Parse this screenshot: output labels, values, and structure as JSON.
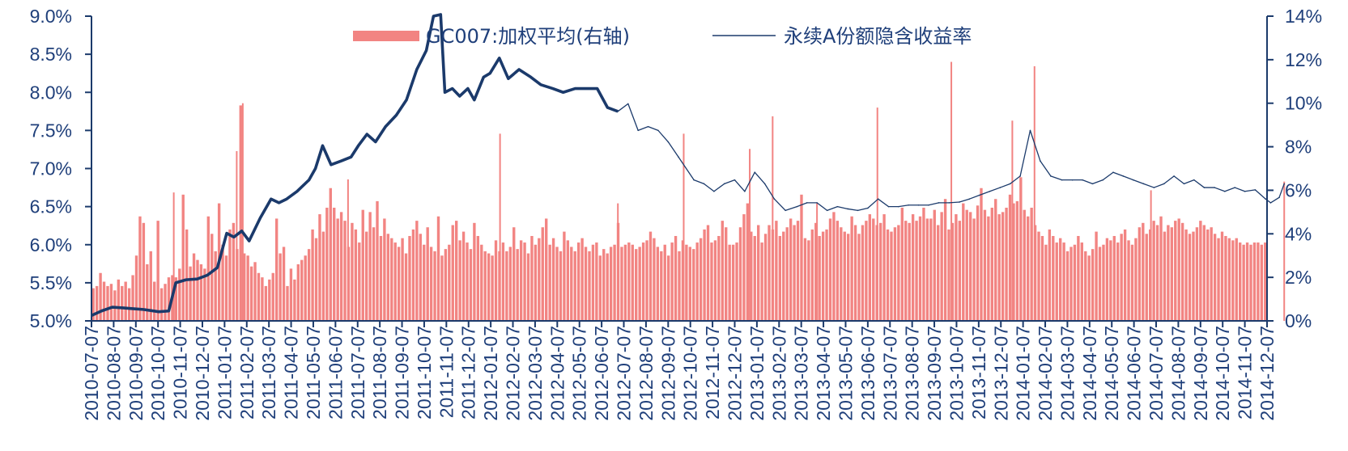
{
  "chart_data": {
    "type": "bar+line",
    "title": "",
    "xlabel": "",
    "y_left": {
      "label": "",
      "range": [
        5.0,
        9.0
      ],
      "ticks": [
        "5.0%",
        "5.5%",
        "6.0%",
        "6.5%",
        "7.0%",
        "7.5%",
        "8.0%",
        "8.5%",
        "9.0%"
      ]
    },
    "y_right": {
      "label": "",
      "range": [
        0,
        14
      ],
      "ticks": [
        "0%",
        "2%",
        "4%",
        "6%",
        "8%",
        "10%",
        "12%",
        "14%"
      ]
    },
    "x_ticks": [
      "2010-07-07",
      "2010-08-07",
      "2010-09-07",
      "2010-10-07",
      "2010-11-07",
      "2010-12-07",
      "2011-01-07",
      "2011-02-07",
      "2011-03-07",
      "2011-04-07",
      "2011-05-07",
      "2011-06-07",
      "2011-07-07",
      "2011-08-07",
      "2011-09-07",
      "2011-10-07",
      "2011-11-07",
      "2011-12-07",
      "2012-01-07",
      "2012-02-07",
      "2012-03-07",
      "2012-04-07",
      "2012-05-07",
      "2012-06-07",
      "2012-07-07",
      "2012-08-07",
      "2012-09-07",
      "2012-10-07",
      "2012-11-07",
      "2012-12-07",
      "2013-01-07",
      "2013-02-07",
      "2013-03-07",
      "2013-04-07",
      "2013-05-07",
      "2013-06-07",
      "2013-07-07",
      "2013-08-07",
      "2013-09-07",
      "2013-10-07",
      "2013-11-07",
      "2013-12-07",
      "2014-01-07",
      "2014-02-07",
      "2014-03-07",
      "2014-04-07",
      "2014-05-07",
      "2014-06-07",
      "2014-07-07",
      "2014-08-07",
      "2014-09-07",
      "2014-10-07",
      "2014-11-07",
      "2014-12-07"
    ],
    "legend": {
      "placement": "top-center"
    },
    "series": [
      {
        "name": "GC007:加权平均(右轴)",
        "kind": "bar",
        "axis": "right",
        "color": "#f28482",
        "x_start": 0,
        "x_end": 53,
        "values": [
          1.5,
          1.6,
          2.2,
          1.8,
          1.6,
          1.7,
          1.4,
          1.9,
          1.6,
          1.8,
          1.5,
          2.1,
          3.0,
          4.8,
          4.5,
          2.6,
          3.2,
          1.8,
          4.6,
          1.5,
          1.7,
          2.0,
          2.1,
          2.0,
          2.4,
          5.8,
          4.2,
          2.5,
          3.1,
          2.8,
          2.6,
          2.4,
          4.8,
          4.0,
          3.2,
          5.4,
          3.5,
          3.0,
          4.2,
          4.5,
          3.3,
          9.9,
          3.1,
          3.0,
          2.5,
          2.7,
          2.2,
          2.0,
          1.6,
          1.9,
          2.2,
          4.7,
          3.1,
          3.4,
          1.6,
          2.4,
          1.9,
          2.6,
          2.8,
          3.0,
          3.3,
          4.2,
          3.8,
          4.9,
          4.1,
          5.2,
          6.1,
          5.2,
          4.7,
          5.0,
          4.6,
          3.4,
          4.5,
          4.2,
          3.6,
          5.1,
          4.1,
          5.0,
          4.3,
          5.5,
          3.9,
          4.7,
          4.0,
          3.8,
          3.6,
          3.4,
          3.8,
          3.1,
          3.9,
          4.2,
          4.6,
          4.0,
          3.5,
          4.3,
          3.4,
          3.2,
          4.8,
          3.0,
          3.3,
          3.5,
          4.4,
          4.6,
          3.7,
          4.1,
          3.6,
          3.3,
          4.5,
          3.9,
          3.5,
          3.2,
          3.1,
          3.0,
          3.7,
          3.2,
          3.6,
          3.2,
          3.4,
          4.3,
          3.3,
          3.7,
          3.6,
          3.1,
          3.9,
          3.5,
          3.8,
          4.3,
          4.7,
          3.5,
          3.8,
          3.4,
          3.2,
          4.1,
          3.7,
          3.4,
          3.2,
          3.6,
          3.8,
          3.4,
          3.2,
          3.5,
          3.6,
          3.0,
          3.3,
          3.1,
          3.4,
          3.5,
          4.5,
          3.4,
          3.5,
          3.6,
          3.5,
          3.3,
          3.4,
          3.6,
          3.7,
          4.1,
          3.8,
          3.4,
          3.2,
          3.5,
          3.0,
          3.6,
          3.9,
          3.2,
          3.7,
          3.5,
          3.4,
          3.3,
          3.6,
          3.8,
          4.2,
          4.4,
          3.6,
          3.7,
          3.9,
          4.6,
          4.3,
          3.5,
          3.5,
          3.6,
          4.3,
          4.9,
          5.4,
          4.1,
          3.9,
          4.4,
          3.6,
          4.0,
          4.4,
          4.2,
          4.6,
          3.9,
          4.1,
          4.3,
          4.7,
          4.4,
          4.6,
          5.8,
          3.8,
          3.7,
          4.2,
          4.5,
          3.9,
          4.1,
          4.2,
          4.7,
          5.0,
          4.6,
          4.3,
          4.1,
          4.0,
          4.8,
          4.4,
          4.0,
          4.4,
          4.6,
          4.9,
          4.7,
          4.4,
          4.5,
          4.9,
          4.2,
          4.1,
          4.3,
          4.4,
          5.2,
          4.6,
          4.5,
          4.9,
          4.6,
          4.8,
          5.2,
          4.7,
          4.7,
          5.1,
          4.4,
          5.0,
          5.6,
          4.2,
          4.5,
          4.9,
          4.6,
          5.4,
          5.1,
          5.0,
          4.7,
          5.3,
          6.1,
          5.1,
          4.8,
          5.2,
          5.6,
          4.9,
          5.0,
          5.2,
          5.8,
          5.4,
          5.5,
          6.6,
          5.1,
          4.8,
          5.2,
          4.4,
          4.1,
          3.9,
          3.5,
          4.2,
          3.9,
          3.6,
          3.8,
          3.6,
          3.2,
          3.4,
          3.5,
          3.9,
          3.6,
          3.2,
          3.0,
          3.3,
          4.1,
          3.4,
          3.5,
          3.8,
          3.7,
          3.9,
          3.6,
          4.0,
          4.2,
          3.7,
          3.5,
          3.8,
          4.3,
          4.5,
          4.0,
          4.2,
          4.6,
          4.4,
          4.8,
          4.1,
          4.4,
          4.3,
          4.6,
          4.7,
          4.5,
          4.2,
          4.0,
          4.1,
          4.3,
          4.6,
          4.4,
          4.2,
          4.3,
          4.0,
          3.8,
          4.1,
          3.9,
          3.8,
          3.7,
          3.8,
          3.6,
          3.5,
          3.6,
          3.5,
          3.6,
          3.6,
          3.5,
          3.6
        ],
        "spikes": [
          {
            "date": "2010-10-29",
            "value": 5.9
          },
          {
            "date": "2011-01-24",
            "value": 7.8
          },
          {
            "date": "2011-02-02",
            "value": 10.0
          },
          {
            "date": "2011-06-24",
            "value": 6.5
          },
          {
            "date": "2012-01-20",
            "value": 8.6
          },
          {
            "date": "2012-06-29",
            "value": 5.4
          },
          {
            "date": "2012-09-28",
            "value": 8.6
          },
          {
            "date": "2012-12-28",
            "value": 7.9
          },
          {
            "date": "2013-01-29",
            "value": 9.4
          },
          {
            "date": "2013-03-29",
            "value": 5.4
          },
          {
            "date": "2013-06-20",
            "value": 9.8
          },
          {
            "date": "2013-09-30",
            "value": 11.9
          },
          {
            "date": "2013-12-23",
            "value": 9.2
          },
          {
            "date": "2014-01-23",
            "value": 11.7
          },
          {
            "date": "2014-06-30",
            "value": 6.0
          },
          {
            "date": "2014-12-31",
            "value": 6.4
          }
        ]
      },
      {
        "name": "永续A份额隐含收益率",
        "kind": "line",
        "axis": "left",
        "color": "#1b3a6b",
        "points": [
          [
            "2010-07-07",
            5.07
          ],
          [
            "2010-07-21",
            5.13
          ],
          [
            "2010-08-05",
            5.18
          ],
          [
            "2010-08-20",
            5.17
          ],
          [
            "2010-09-03",
            5.16
          ],
          [
            "2010-09-17",
            5.15
          ],
          [
            "2010-10-08",
            5.12
          ],
          [
            "2010-10-22",
            5.13
          ],
          [
            "2010-11-01",
            5.5
          ],
          [
            "2010-11-15",
            5.54
          ],
          [
            "2010-11-30",
            5.55
          ],
          [
            "2010-12-14",
            5.6
          ],
          [
            "2010-12-28",
            5.7
          ],
          [
            "2011-01-10",
            6.15
          ],
          [
            "2011-01-20",
            6.1
          ],
          [
            "2011-01-31",
            6.18
          ],
          [
            "2011-02-10",
            6.05
          ],
          [
            "2011-02-24",
            6.35
          ],
          [
            "2011-03-10",
            6.6
          ],
          [
            "2011-03-21",
            6.55
          ],
          [
            "2011-04-01",
            6.6
          ],
          [
            "2011-04-15",
            6.7
          ],
          [
            "2011-05-01",
            6.85
          ],
          [
            "2011-05-10",
            7.0
          ],
          [
            "2011-05-20",
            7.3
          ],
          [
            "2011-06-01",
            7.05
          ],
          [
            "2011-06-15",
            7.1
          ],
          [
            "2011-06-28",
            7.15
          ],
          [
            "2011-07-08",
            7.3
          ],
          [
            "2011-07-20",
            7.45
          ],
          [
            "2011-08-01",
            7.35
          ],
          [
            "2011-08-15",
            7.55
          ],
          [
            "2011-08-30",
            7.7
          ],
          [
            "2011-09-13",
            7.9
          ],
          [
            "2011-09-27",
            8.3
          ],
          [
            "2011-10-10",
            8.55
          ],
          [
            "2011-10-20",
            9.0
          ],
          [
            "2011-10-30",
            9.1
          ],
          [
            "2011-11-05",
            8.0
          ],
          [
            "2011-11-15",
            8.05
          ],
          [
            "2011-11-25",
            7.95
          ],
          [
            "2011-12-06",
            8.05
          ],
          [
            "2011-12-15",
            7.9
          ],
          [
            "2011-12-28",
            8.2
          ],
          [
            "2012-01-06",
            8.25
          ],
          [
            "2012-01-19",
            8.45
          ],
          [
            "2012-02-01",
            8.18
          ],
          [
            "2012-02-15",
            8.3
          ],
          [
            "2012-03-01",
            8.2
          ],
          [
            "2012-03-15",
            8.1
          ],
          [
            "2012-04-01",
            8.05
          ],
          [
            "2012-04-15",
            8.0
          ],
          [
            "2012-05-01",
            8.05
          ],
          [
            "2012-05-15",
            8.05
          ],
          [
            "2012-06-01",
            8.05
          ],
          [
            "2012-06-15",
            7.8
          ],
          [
            "2012-06-29",
            7.75
          ],
          [
            "2012-07-13",
            7.85
          ],
          [
            "2012-07-27",
            7.5
          ],
          [
            "2012-08-10",
            7.55
          ],
          [
            "2012-08-24",
            7.5
          ],
          [
            "2012-09-07",
            7.35
          ],
          [
            "2012-09-21",
            7.15
          ],
          [
            "2012-10-12",
            6.85
          ],
          [
            "2012-10-26",
            6.8
          ],
          [
            "2012-11-09",
            6.7
          ],
          [
            "2012-11-23",
            6.8
          ],
          [
            "2012-12-07",
            6.85
          ],
          [
            "2012-12-21",
            6.7
          ],
          [
            "2013-01-04",
            6.95
          ],
          [
            "2013-01-18",
            6.8
          ],
          [
            "2013-02-01",
            6.6
          ],
          [
            "2013-02-15",
            6.45
          ],
          [
            "2013-03-01",
            6.5
          ],
          [
            "2013-03-15",
            6.55
          ],
          [
            "2013-03-29",
            6.55
          ],
          [
            "2013-04-12",
            6.45
          ],
          [
            "2013-04-26",
            6.5
          ],
          [
            "2013-05-10",
            6.47
          ],
          [
            "2013-05-24",
            6.45
          ],
          [
            "2013-06-07",
            6.48
          ],
          [
            "2013-06-21",
            6.6
          ],
          [
            "2013-07-05",
            6.5
          ],
          [
            "2013-07-19",
            6.5
          ],
          [
            "2013-08-02",
            6.52
          ],
          [
            "2013-08-16",
            6.52
          ],
          [
            "2013-08-30",
            6.52
          ],
          [
            "2013-09-13",
            6.55
          ],
          [
            "2013-09-27",
            6.55
          ],
          [
            "2013-10-11",
            6.56
          ],
          [
            "2013-10-25",
            6.6
          ],
          [
            "2013-11-08",
            6.65
          ],
          [
            "2013-11-22",
            6.7
          ],
          [
            "2013-12-06",
            6.75
          ],
          [
            "2013-12-20",
            6.8
          ],
          [
            "2014-01-03",
            6.9
          ],
          [
            "2014-01-17",
            7.5
          ],
          [
            "2014-01-31",
            7.1
          ],
          [
            "2014-02-14",
            6.9
          ],
          [
            "2014-02-28",
            6.85
          ],
          [
            "2014-03-14",
            6.85
          ],
          [
            "2014-03-28",
            6.85
          ],
          [
            "2014-04-11",
            6.8
          ],
          [
            "2014-04-25",
            6.85
          ],
          [
            "2014-05-09",
            6.95
          ],
          [
            "2014-05-23",
            6.9
          ],
          [
            "2014-06-06",
            6.85
          ],
          [
            "2014-06-20",
            6.8
          ],
          [
            "2014-07-04",
            6.75
          ],
          [
            "2014-07-18",
            6.8
          ],
          [
            "2014-08-01",
            6.9
          ],
          [
            "2014-08-15",
            6.8
          ],
          [
            "2014-08-29",
            6.85
          ],
          [
            "2014-09-12",
            6.75
          ],
          [
            "2014-09-26",
            6.75
          ],
          [
            "2014-10-10",
            6.7
          ],
          [
            "2014-10-24",
            6.75
          ],
          [
            "2014-11-07",
            6.7
          ],
          [
            "2014-11-21",
            6.72
          ],
          [
            "2014-12-05",
            6.6
          ],
          [
            "2014-12-12",
            6.55
          ],
          [
            "2014-12-24",
            6.62
          ],
          [
            "2014-12-31",
            6.8
          ]
        ]
      }
    ]
  }
}
